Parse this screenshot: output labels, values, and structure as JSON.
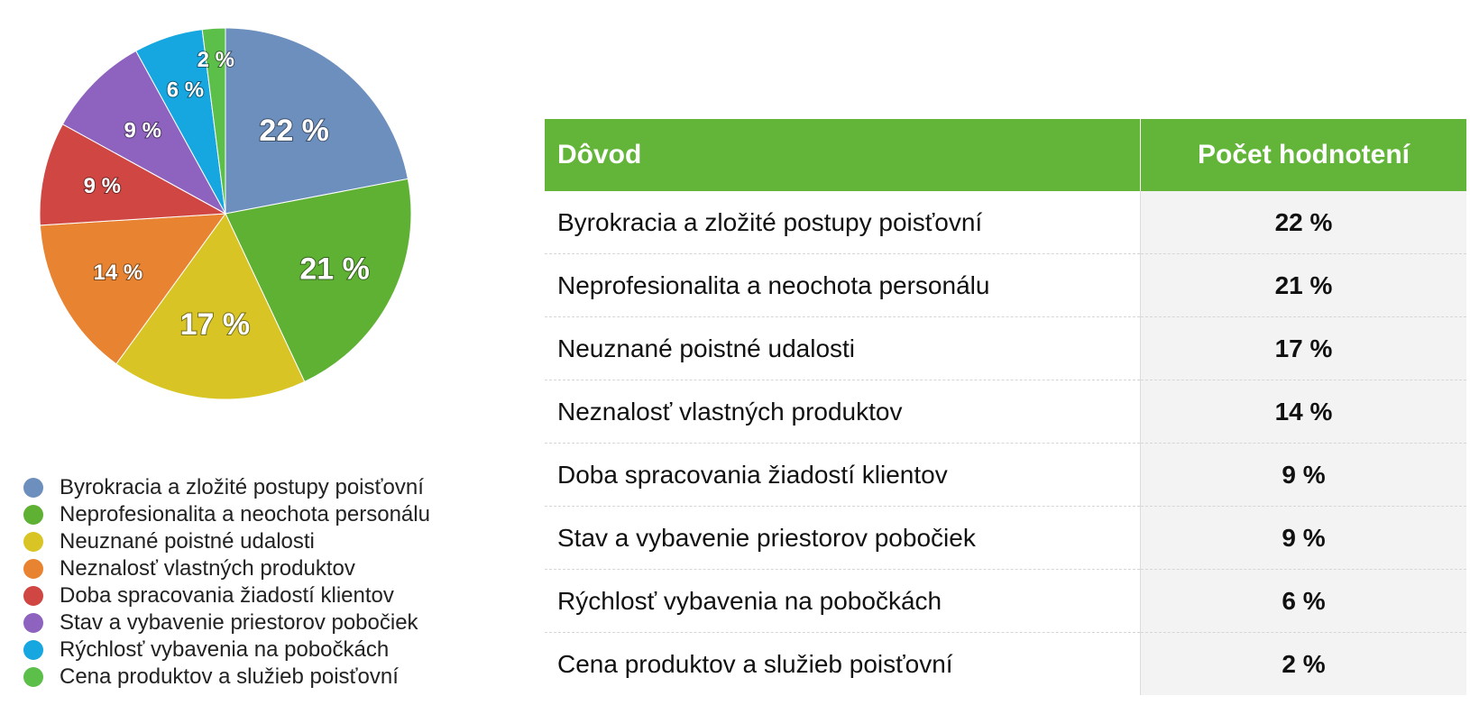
{
  "chart_data": {
    "type": "pie",
    "categories": [
      "Byrokracia a zložité postupy poisťovní",
      "Neprofesionalita a neochota personálu",
      "Neuznané poistné udalosti",
      "Neznalosť vlastných produktov",
      "Doba spracovania žiadostí klientov",
      "Stav a vybavenie priestorov pobočiek",
      "Rýchlosť vybavenia na pobočkách",
      "Cena produktov a služieb poisťovní"
    ],
    "values": [
      22,
      21,
      17,
      14,
      9,
      9,
      6,
      2
    ],
    "value_labels": [
      "22 %",
      "21 %",
      "17 %",
      "14 %",
      "9 %",
      "9 %",
      "6 %",
      "2 %"
    ],
    "colors": [
      "#6d8fbd",
      "#5fb134",
      "#d8c525",
      "#e88331",
      "#cf4642",
      "#8e63bf",
      "#16a6e0",
      "#5cbf49"
    ],
    "legend_position": "bottom-left"
  },
  "table": {
    "header_reason": "Dôvod",
    "header_count": "Počet hodnotení",
    "rows": [
      {
        "reason": "Byrokracia a zložité postupy poisťovní",
        "value": "22 %"
      },
      {
        "reason": "Neprofesionalita a neochota personálu",
        "value": "21 %"
      },
      {
        "reason": "Neuznané poistné udalosti",
        "value": "17 %"
      },
      {
        "reason": "Neznalosť vlastných produktov",
        "value": "14 %"
      },
      {
        "reason": "Doba spracovania žiadostí klientov",
        "value": "9 %"
      },
      {
        "reason": "Stav a vybavenie priestorov pobočiek",
        "value": "9 %"
      },
      {
        "reason": "Rýchlosť vybavenia na pobočkách",
        "value": "6 %"
      },
      {
        "reason": "Cena produktov a služieb poisťovní",
        "value": "2 %"
      }
    ]
  },
  "colors": {
    "header_green": "#63b53a",
    "value_cell_bg": "#f3f3f3"
  }
}
